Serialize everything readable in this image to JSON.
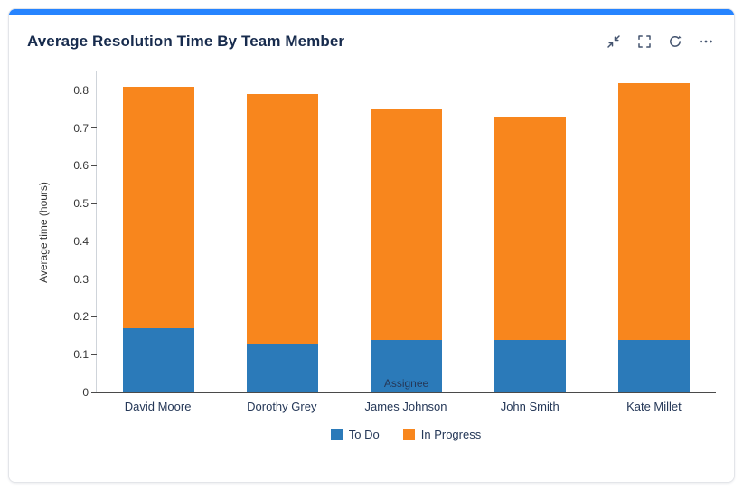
{
  "card": {
    "accent_color": "#2684FF"
  },
  "header": {
    "title": "Average Resolution Time By Team Member",
    "icons": [
      "collapse-icon",
      "fullscreen-icon",
      "refresh-icon",
      "more-options-icon"
    ]
  },
  "chart_data": {
    "type": "bar",
    "stacked": true,
    "title": "Average Resolution Time By Team Member",
    "categories": [
      "David Moore",
      "Dorothy Grey",
      "James Johnson",
      "John Smith",
      "Kate Millet"
    ],
    "series": [
      {
        "name": "To Do",
        "color": "#2B7AB9",
        "values": [
          0.17,
          0.13,
          0.14,
          0.14,
          0.14
        ]
      },
      {
        "name": "In Progress",
        "color": "#F8861D",
        "values": [
          0.64,
          0.66,
          0.61,
          0.59,
          0.68
        ]
      }
    ],
    "stack_totals": [
      0.81,
      0.79,
      0.75,
      0.73,
      0.82
    ],
    "xlabel": "Assignee",
    "ylabel": "Average time (hours)",
    "yticks": [
      0,
      0.1,
      0.2,
      0.3,
      0.4,
      0.5,
      0.6,
      0.7,
      0.8
    ],
    "ylim": [
      0,
      0.85
    ],
    "grid": false,
    "legend_position": "bottom"
  }
}
